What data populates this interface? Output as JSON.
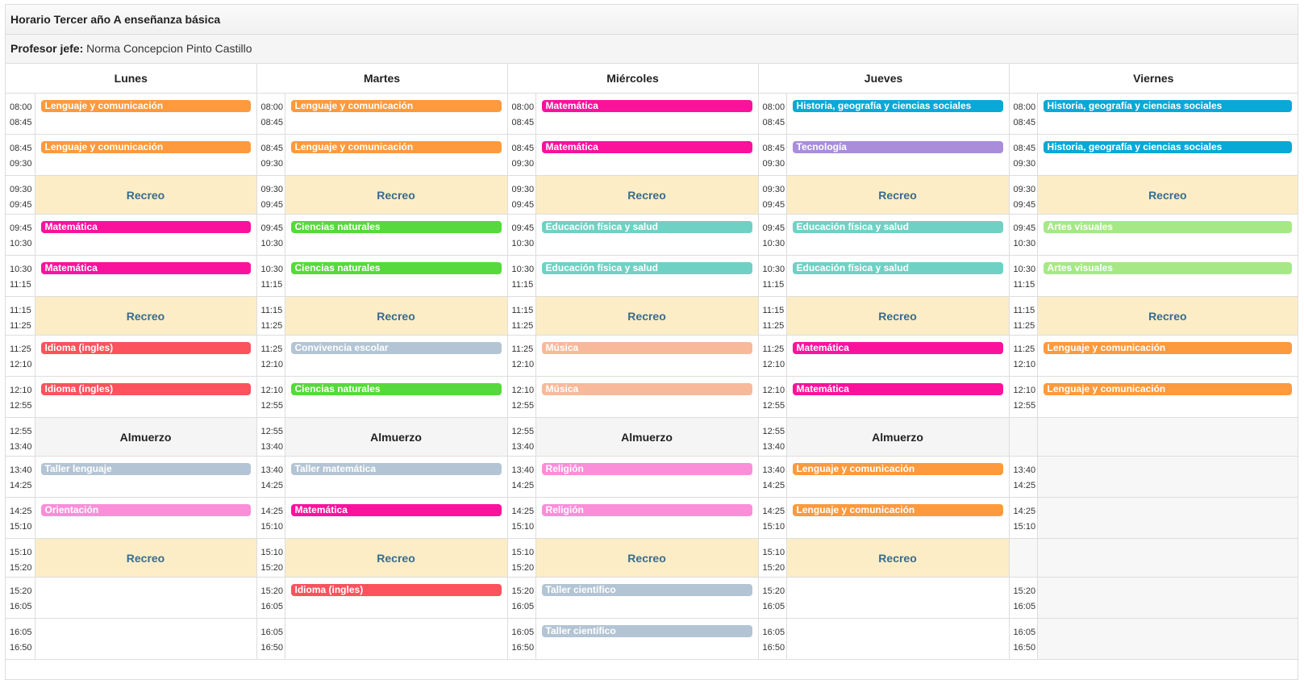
{
  "title": "Horario Tercer año A enseñanza básica",
  "teacher": {
    "label": "Profesor jefe:",
    "name": "Norma Concepcion Pinto Castillo"
  },
  "days": [
    "Lunes",
    "Martes",
    "Miércoles",
    "Jueves",
    "Viernes"
  ],
  "colors": {
    "lenguaje": "#fd9a3d",
    "matematica": "#fb129c",
    "historia": "#08a9d6",
    "tecnologia": "#a98ddb",
    "ciencias": "#56d93c",
    "edfisica": "#6fd1c4",
    "artes": "#a6e885",
    "ingles": "#fb525d",
    "convivencia": "#b3c4d4",
    "musica": "#f8b99a",
    "taller": "#b3c4d4",
    "orientacion": "#fb8ed8",
    "religion": "#fb8ed8",
    "recreo_bg": "#fcedc7"
  },
  "rows": [
    {
      "start": "08:00",
      "end": "08:45",
      "cells": [
        {
          "t": "Lenguaje y comunicación",
          "c": "lenguaje"
        },
        {
          "t": "Lenguaje y comunicación",
          "c": "lenguaje"
        },
        {
          "t": "Matemática",
          "c": "matematica"
        },
        {
          "t": "Historia, geografía y ciencias sociales",
          "c": "historia"
        },
        {
          "t": "Historia, geografía y ciencias sociales",
          "c": "historia"
        }
      ]
    },
    {
      "start": "08:45",
      "end": "09:30",
      "cells": [
        {
          "t": "Lenguaje y comunicación",
          "c": "lenguaje"
        },
        {
          "t": "Lenguaje y comunicación",
          "c": "lenguaje"
        },
        {
          "t": "Matemática",
          "c": "matematica"
        },
        {
          "t": "Tecnología",
          "c": "tecnologia"
        },
        {
          "t": "Historia, geografía y ciencias sociales",
          "c": "historia"
        }
      ]
    },
    {
      "start": "09:30",
      "end": "09:45",
      "type": "recreo",
      "label": "Recreo",
      "days": [
        true,
        true,
        true,
        true,
        true
      ]
    },
    {
      "start": "09:45",
      "end": "10:30",
      "cells": [
        {
          "t": "Matemática",
          "c": "matematica"
        },
        {
          "t": "Ciencias naturales",
          "c": "ciencias"
        },
        {
          "t": "Educación física y salud",
          "c": "edfisica"
        },
        {
          "t": "Educación física y salud",
          "c": "edfisica"
        },
        {
          "t": "Artes visuales",
          "c": "artes"
        }
      ]
    },
    {
      "start": "10:30",
      "end": "11:15",
      "cells": [
        {
          "t": "Matemática",
          "c": "matematica"
        },
        {
          "t": "Ciencias naturales",
          "c": "ciencias"
        },
        {
          "t": "Educación física y salud",
          "c": "edfisica"
        },
        {
          "t": "Educación física y salud",
          "c": "edfisica"
        },
        {
          "t": "Artes visuales",
          "c": "artes"
        }
      ]
    },
    {
      "start": "11:15",
      "end": "11:25",
      "type": "recreo",
      "label": "Recreo",
      "days": [
        true,
        true,
        true,
        true,
        true
      ]
    },
    {
      "start": "11:25",
      "end": "12:10",
      "cells": [
        {
          "t": "Idioma (ingles)",
          "c": "ingles"
        },
        {
          "t": "Convivencia escolar",
          "c": "convivencia"
        },
        {
          "t": "Música",
          "c": "musica"
        },
        {
          "t": "Matemática",
          "c": "matematica"
        },
        {
          "t": "Lenguaje y comunicación",
          "c": "lenguaje"
        }
      ]
    },
    {
      "start": "12:10",
      "end": "12:55",
      "cells": [
        {
          "t": "Idioma (ingles)",
          "c": "ingles"
        },
        {
          "t": "Ciencias naturales",
          "c": "ciencias"
        },
        {
          "t": "Música",
          "c": "musica"
        },
        {
          "t": "Matemática",
          "c": "matematica"
        },
        {
          "t": "Lenguaje y comunicación",
          "c": "lenguaje"
        }
      ]
    },
    {
      "start": "12:55",
      "end": "13:40",
      "type": "almuerzo",
      "label": "Almuerzo",
      "days": [
        true,
        true,
        true,
        true,
        false
      ]
    },
    {
      "start": "13:40",
      "end": "14:25",
      "cells": [
        {
          "t": "Taller lenguaje",
          "c": "taller"
        },
        {
          "t": "Taller matemática",
          "c": "taller"
        },
        {
          "t": "Religión",
          "c": "religion"
        },
        {
          "t": "Lenguaje y comunicación",
          "c": "lenguaje"
        },
        null
      ]
    },
    {
      "start": "14:25",
      "end": "15:10",
      "cells": [
        {
          "t": "Orientación",
          "c": "orientacion"
        },
        {
          "t": "Matemática",
          "c": "matematica"
        },
        {
          "t": "Religión",
          "c": "religion"
        },
        {
          "t": "Lenguaje y comunicación",
          "c": "lenguaje"
        },
        null
      ]
    },
    {
      "start": "15:10",
      "end": "15:20",
      "type": "recreo",
      "label": "Recreo",
      "days": [
        true,
        true,
        true,
        true,
        false
      ]
    },
    {
      "start": "15:20",
      "end": "16:05",
      "cells": [
        null,
        {
          "t": "Idioma (ingles)",
          "c": "ingles"
        },
        {
          "t": "Taller científico",
          "c": "taller"
        },
        null,
        null
      ]
    },
    {
      "start": "16:05",
      "end": "16:50",
      "cells": [
        null,
        null,
        {
          "t": "Taller científico",
          "c": "taller"
        },
        null,
        null
      ]
    }
  ]
}
